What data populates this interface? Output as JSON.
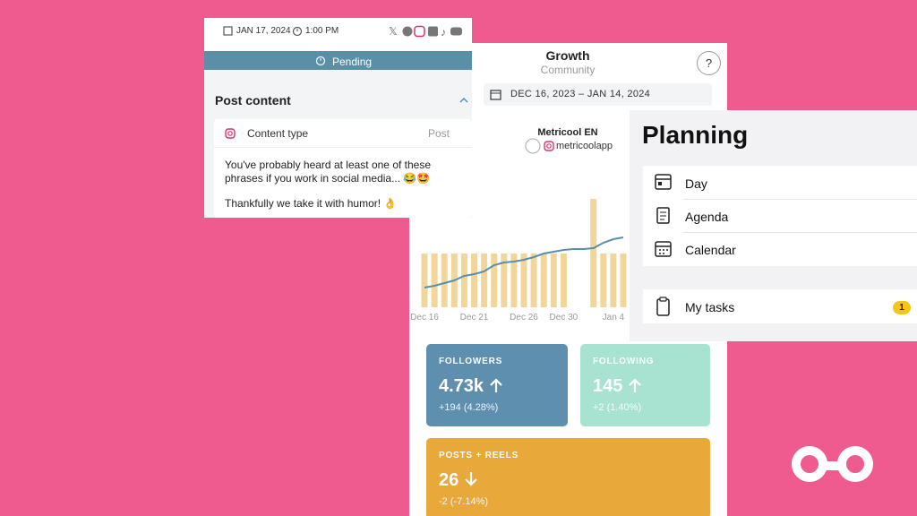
{
  "post": {
    "date": "JAN 17, 2024",
    "time": "1:00 PM",
    "status": "Pending",
    "section_title": "Post content",
    "content_type_label": "Content type",
    "content_type_value": "Post",
    "text_lines": [
      "You've probably heard at least one of these",
      "phrases if you work in social media... 😂🤩",
      "Thankfully we take it with humor! 👌"
    ]
  },
  "growth": {
    "title": "Growth",
    "subtitle": "Community",
    "help": "?",
    "date_range": "DEC 16, 2023 – JAN 14, 2024",
    "account_name": "Metricool EN",
    "account_handle": "metricoolapp",
    "chart_data": {
      "type": "bar",
      "categories": [
        "Dec 16",
        null,
        null,
        null,
        null,
        "Dec 21",
        null,
        null,
        null,
        null,
        "Dec 26",
        null,
        null,
        null,
        "Dec 30",
        null,
        null,
        null,
        null,
        "Jan 4",
        null
      ],
      "series": [
        {
          "type": "bar",
          "color": "#f2d59a",
          "values": [
            60,
            60,
            60,
            60,
            60,
            60,
            60,
            60,
            60,
            60,
            60,
            60,
            60,
            60,
            60,
            0,
            0,
            121,
            60,
            60,
            60
          ]
        },
        {
          "type": "line",
          "color": "#5b8fa8",
          "values": [
            22,
            24,
            27,
            30,
            35,
            37,
            40,
            47,
            50,
            51,
            53,
            56,
            60,
            62,
            64,
            65,
            65,
            66,
            72,
            76,
            78
          ]
        }
      ]
    },
    "cards": [
      {
        "label": "FOLLOWERS",
        "value": "4.73k",
        "change": "+194 (4.28%)",
        "color": "#5f8fae"
      },
      {
        "label": "FOLLOWING",
        "value": "145",
        "change": "+2 (1.40%)",
        "color": "#a7e3d0"
      },
      {
        "label": "POSTS + REELS",
        "value": "26",
        "change": "-2 (-7.14%)",
        "color": "#e8a93a"
      }
    ]
  },
  "planning": {
    "title": "Planning",
    "items": [
      "Day",
      "Agenda",
      "Calendar"
    ],
    "tasks": {
      "label": "My tasks",
      "count": 1
    }
  }
}
